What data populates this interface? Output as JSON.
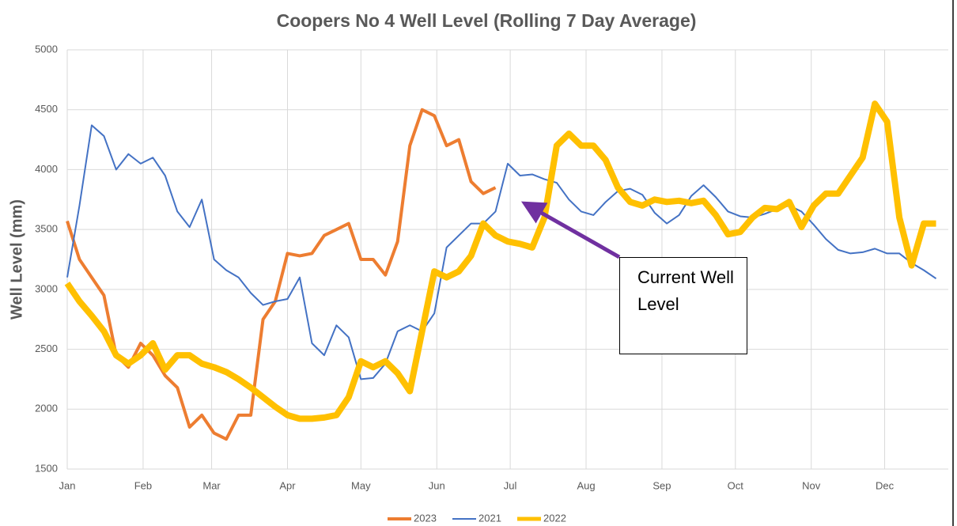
{
  "chart_data": {
    "type": "line",
    "title": "Coopers No 4 Well Level (Rolling 7 Day Average)",
    "y_label": "Well Level (mm)",
    "annotation": "Current Well Level",
    "x": [
      0,
      5,
      10,
      15,
      20,
      25,
      30,
      35,
      40,
      45,
      50,
      55,
      60,
      65,
      70,
      75,
      80,
      85,
      90,
      95,
      100,
      105,
      110,
      115,
      120,
      125,
      130,
      135,
      140,
      145,
      150,
      155,
      160,
      165,
      170,
      175,
      180,
      185,
      190,
      195,
      200,
      205,
      210,
      215,
      220,
      225,
      230,
      235,
      240,
      245,
      250,
      255,
      260,
      265,
      270,
      275,
      280,
      285,
      290,
      295,
      300,
      305,
      310,
      315,
      320,
      325,
      330,
      335,
      340,
      345,
      350,
      355
    ],
    "xlim": [
      0,
      360
    ],
    "xticks": [
      {
        "value": 0,
        "label": "Jan"
      },
      {
        "value": 31,
        "label": "Feb"
      },
      {
        "value": 59,
        "label": "Mar"
      },
      {
        "value": 90,
        "label": "Apr"
      },
      {
        "value": 120,
        "label": "May"
      },
      {
        "value": 151,
        "label": "Jun"
      },
      {
        "value": 181,
        "label": "Jul"
      },
      {
        "value": 212,
        "label": "Aug"
      },
      {
        "value": 243,
        "label": "Sep"
      },
      {
        "value": 273,
        "label": "Oct"
      },
      {
        "value": 304,
        "label": "Nov"
      },
      {
        "value": 334,
        "label": "Dec"
      }
    ],
    "ylim": [
      1500,
      5000
    ],
    "yticks": [
      1500,
      2000,
      2500,
      3000,
      3500,
      4000,
      4500,
      5000
    ],
    "grid": true,
    "legend": "bottom",
    "series": [
      {
        "name": "2023",
        "color": "#ed7d31",
        "width": 4,
        "values": [
          3570,
          3250,
          3100,
          2950,
          2450,
          2350,
          2550,
          2450,
          2280,
          2180,
          1850,
          1950,
          1800,
          1750,
          1950,
          1950,
          2750,
          2900,
          3300,
          3280,
          3300,
          3450,
          3500,
          3550,
          3250,
          3250,
          3120,
          3400,
          4200,
          4500,
          4450,
          4200,
          4250,
          3900,
          3800,
          3850,
          null,
          null,
          null,
          null,
          null,
          null,
          null,
          null,
          null,
          null,
          null,
          null,
          null,
          null,
          null,
          null,
          null,
          null,
          null,
          null,
          null,
          null,
          null,
          null,
          null,
          null,
          null,
          null,
          null,
          null,
          null,
          null,
          null,
          null,
          null,
          null
        ]
      },
      {
        "name": "2021",
        "color": "#4472c4",
        "width": 2,
        "values": [
          3100,
          3700,
          4370,
          4280,
          4000,
          4130,
          4050,
          4100,
          3950,
          3650,
          3520,
          3750,
          3250,
          3160,
          3100,
          2970,
          2870,
          2900,
          2920,
          3100,
          2550,
          2450,
          2700,
          2600,
          2250,
          2260,
          2380,
          2650,
          2700,
          2650,
          2800,
          3350,
          3450,
          3550,
          3550,
          3650,
          4050,
          3950,
          3960,
          3920,
          3890,
          3750,
          3650,
          3620,
          3730,
          3820,
          3840,
          3790,
          3640,
          3550,
          3620,
          3780,
          3870,
          3770,
          3650,
          3610,
          3600,
          3630,
          3670,
          3700,
          3650,
          3540,
          3420,
          3330,
          3300,
          3310,
          3340,
          3300,
          3300,
          3220,
          3160,
          3090
        ]
      },
      {
        "name": "2022",
        "color": "#ffc000",
        "width": 8,
        "values": [
          3050,
          2900,
          2780,
          2650,
          2450,
          2380,
          2450,
          2550,
          2330,
          2450,
          2450,
          2380,
          2350,
          2310,
          2250,
          2180,
          2100,
          2020,
          1950,
          1920,
          1920,
          1930,
          1950,
          2100,
          2400,
          2350,
          2400,
          2300,
          2150,
          2650,
          3150,
          3100,
          3150,
          3280,
          3550,
          3450,
          3400,
          3380,
          3350,
          3600,
          4200,
          4300,
          4200,
          4200,
          4080,
          3850,
          3730,
          3700,
          3750,
          3730,
          3740,
          3720,
          3740,
          3620,
          3460,
          3480,
          3600,
          3680,
          3670,
          3730,
          3520,
          3700,
          3800,
          3800,
          3950,
          4100,
          4550,
          4400,
          3600,
          3200,
          3550,
          3550
        ]
      }
    ]
  }
}
